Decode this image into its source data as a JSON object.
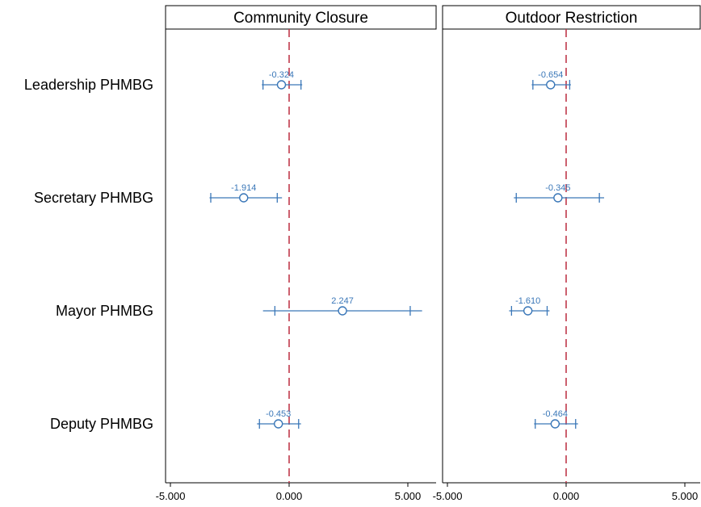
{
  "chart_data": {
    "type": "coefficient-plot",
    "categories": [
      "Leadership PHMBG",
      "Secretary PHMBG",
      "Mayor PHMBG",
      "Deputy PHMBG"
    ],
    "x_ticks": [
      -5,
      0,
      5
    ],
    "x_tick_labels": [
      "-5.000",
      "0.000",
      "5.000"
    ],
    "xlim": [
      -5,
      5
    ],
    "reference_line": 0,
    "colors": {
      "series": "#3a77b8",
      "reference": "#c0394a",
      "axis": "#000000"
    },
    "panels": [
      {
        "title": "Community Closure",
        "points": [
          {
            "category": "Leadership PHMBG",
            "estimate": -0.324,
            "label": "-0.324",
            "ci90": [
              -1.1,
              0.5
            ],
            "ci95": [
              -1.15,
              0.55
            ]
          },
          {
            "category": "Secretary PHMBG",
            "estimate": -1.914,
            "label": "-1.914",
            "ci90": [
              -0.5,
              -3.3
            ],
            "ci95": [
              -3.35,
              -0.3
            ]
          },
          {
            "category": "Mayor PHMBG",
            "estimate": 2.247,
            "label": "2.247",
            "ci90": [
              -0.6,
              5.1
            ],
            "ci95": [
              -1.1,
              5.6
            ]
          },
          {
            "category": "Deputy PHMBG",
            "estimate": -0.453,
            "label": "-0.453",
            "ci90": [
              -1.25,
              0.4
            ],
            "ci95": [
              -1.35,
              0.5
            ]
          }
        ]
      },
      {
        "title": "Outdoor Restriction",
        "points": [
          {
            "category": "Leadership PHMBG",
            "estimate": -0.654,
            "label": "-0.654",
            "ci90": [
              -1.4,
              0.15
            ],
            "ci95": [
              -1.45,
              0.2
            ]
          },
          {
            "category": "Secretary PHMBG",
            "estimate": -0.345,
            "label": "-0.345",
            "ci90": [
              -2.1,
              1.4
            ],
            "ci95": [
              -2.2,
              1.6
            ]
          },
          {
            "category": "Mayor PHMBG",
            "estimate": -1.61,
            "label": "-1.610",
            "ci90": [
              -2.3,
              -0.8
            ],
            "ci95": [
              -2.4,
              -0.7
            ]
          },
          {
            "category": "Deputy PHMBG",
            "estimate": -0.464,
            "label": "-0.464",
            "ci90": [
              -1.3,
              0.4
            ],
            "ci95": [
              -1.35,
              0.5
            ]
          }
        ]
      }
    ]
  }
}
